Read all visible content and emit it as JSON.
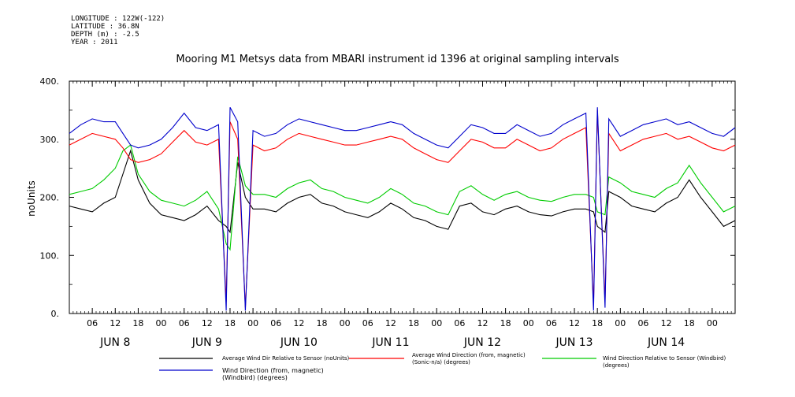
{
  "meta": {
    "longitude": "LONGITUDE : 122W(-122)",
    "latitude": "LATITUDE : 36.8N",
    "depth": "DEPTH (m) : -2.5",
    "year": "YEAR : 2011"
  },
  "chart_data": {
    "type": "line",
    "title": "Mooring M1 Metsys data from MBARI instrument id 1396 at original sampling intervals",
    "ylabel": "noUnits",
    "xlabel": "",
    "ylim": [
      0,
      400
    ],
    "yticks": [
      0,
      100,
      200,
      300,
      400
    ],
    "ytick_labels": [
      "0.",
      "100.",
      "200.",
      "300.",
      "400."
    ],
    "xlim_hours": [
      0,
      174
    ],
    "hour_ticks": [
      "06",
      "12",
      "18",
      "00",
      "06",
      "12",
      "18",
      "00",
      "06",
      "12",
      "18",
      "00",
      "06",
      "12",
      "18",
      "00",
      "06",
      "12",
      "18",
      "00",
      "06",
      "12",
      "18",
      "00",
      "06",
      "12",
      "18",
      "00"
    ],
    "day_labels": [
      "JUN  8",
      "JUN  9",
      "JUN 10",
      "JUN 11",
      "JUN 12",
      "JUN 13",
      "JUN 14"
    ],
    "grid": false,
    "series": [
      {
        "name": "Average Wind Dir Relative to Sensor (noUnits)",
        "color": "#000000",
        "x": [
          0,
          3,
          6,
          9,
          12,
          14,
          16,
          18,
          21,
          24,
          27,
          30,
          33,
          36,
          39,
          41,
          42,
          44,
          46,
          48,
          51,
          54,
          57,
          60,
          63,
          66,
          69,
          72,
          75,
          78,
          81,
          84,
          87,
          90,
          93,
          96,
          99,
          102,
          105,
          108,
          111,
          114,
          117,
          120,
          123,
          126,
          129,
          132,
          135,
          137,
          138,
          140,
          141,
          144,
          147,
          150,
          153,
          156,
          159,
          162,
          165,
          168,
          171,
          174
        ],
        "y": [
          185,
          180,
          175,
          190,
          200,
          240,
          280,
          230,
          190,
          170,
          165,
          160,
          170,
          185,
          160,
          150,
          140,
          260,
          200,
          180,
          180,
          175,
          190,
          200,
          205,
          190,
          185,
          175,
          170,
          165,
          175,
          190,
          180,
          165,
          160,
          150,
          145,
          185,
          190,
          175,
          170,
          180,
          185,
          175,
          170,
          168,
          175,
          180,
          180,
          175,
          150,
          140,
          210,
          200,
          185,
          180,
          175,
          190,
          200,
          230,
          200,
          175,
          150,
          160
        ]
      },
      {
        "name": "Average Wind Direction (from, magnetic) (Sonic-n/a) (degrees)",
        "color": "#ff0000",
        "x": [
          0,
          3,
          6,
          9,
          12,
          14,
          16,
          18,
          21,
          24,
          27,
          30,
          33,
          36,
          39,
          41,
          42,
          44,
          46,
          48,
          51,
          54,
          57,
          60,
          63,
          66,
          69,
          72,
          75,
          78,
          81,
          84,
          87,
          90,
          93,
          96,
          99,
          102,
          105,
          108,
          111,
          114,
          117,
          120,
          123,
          126,
          129,
          132,
          135,
          137,
          138,
          140,
          141,
          144,
          147,
          150,
          153,
          156,
          159,
          162,
          165,
          168,
          171,
          174
        ],
        "y": [
          290,
          300,
          310,
          305,
          300,
          285,
          265,
          260,
          265,
          275,
          295,
          315,
          295,
          290,
          300,
          20,
          330,
          300,
          10,
          290,
          280,
          285,
          300,
          310,
          305,
          300,
          295,
          290,
          290,
          295,
          300,
          305,
          300,
          285,
          275,
          265,
          260,
          280,
          300,
          295,
          285,
          285,
          300,
          290,
          280,
          285,
          300,
          310,
          320,
          15,
          350,
          20,
          310,
          280,
          290,
          300,
          305,
          310,
          300,
          305,
          295,
          285,
          280,
          290
        ]
      },
      {
        "name": "Wind Direction Relative to Sensor (Windbird) (degrees)",
        "color": "#00cc00",
        "x": [
          0,
          3,
          6,
          9,
          12,
          14,
          16,
          18,
          21,
          24,
          27,
          30,
          33,
          36,
          39,
          41,
          42,
          44,
          46,
          48,
          51,
          54,
          57,
          60,
          63,
          66,
          69,
          72,
          75,
          78,
          81,
          84,
          87,
          90,
          93,
          96,
          99,
          102,
          105,
          108,
          111,
          114,
          117,
          120,
          123,
          126,
          129,
          132,
          135,
          137,
          138,
          140,
          141,
          144,
          147,
          150,
          153,
          156,
          159,
          162,
          165,
          168,
          171,
          174
        ],
        "y": [
          205,
          210,
          215,
          230,
          250,
          280,
          290,
          240,
          210,
          195,
          190,
          185,
          195,
          210,
          180,
          120,
          110,
          270,
          220,
          205,
          205,
          200,
          215,
          225,
          230,
          215,
          210,
          200,
          195,
          190,
          200,
          215,
          205,
          190,
          185,
          175,
          170,
          210,
          220,
          205,
          195,
          205,
          210,
          200,
          195,
          193,
          200,
          205,
          205,
          200,
          175,
          170,
          235,
          225,
          210,
          205,
          200,
          215,
          225,
          255,
          225,
          200,
          175,
          185
        ]
      },
      {
        "name": "Wind Direction (from, magnetic) (Windbird) (degrees)",
        "color": "#0000cc",
        "x": [
          0,
          3,
          6,
          9,
          12,
          14,
          16,
          18,
          21,
          24,
          27,
          30,
          33,
          36,
          39,
          41,
          42,
          44,
          46,
          48,
          51,
          54,
          57,
          60,
          63,
          66,
          69,
          72,
          75,
          78,
          81,
          84,
          87,
          90,
          93,
          96,
          99,
          102,
          105,
          108,
          111,
          114,
          117,
          120,
          123,
          126,
          129,
          132,
          135,
          137,
          138,
          140,
          141,
          144,
          147,
          150,
          153,
          156,
          159,
          162,
          165,
          168,
          171,
          174
        ],
        "y": [
          310,
          325,
          335,
          330,
          330,
          310,
          290,
          285,
          290,
          300,
          320,
          345,
          320,
          315,
          325,
          5,
          355,
          330,
          5,
          315,
          305,
          310,
          325,
          335,
          330,
          325,
          320,
          315,
          315,
          320,
          325,
          330,
          325,
          310,
          300,
          290,
          285,
          305,
          325,
          320,
          310,
          310,
          325,
          315,
          305,
          310,
          325,
          335,
          345,
          5,
          355,
          10,
          335,
          305,
          315,
          325,
          330,
          335,
          325,
          330,
          320,
          310,
          305,
          320
        ]
      }
    ]
  }
}
